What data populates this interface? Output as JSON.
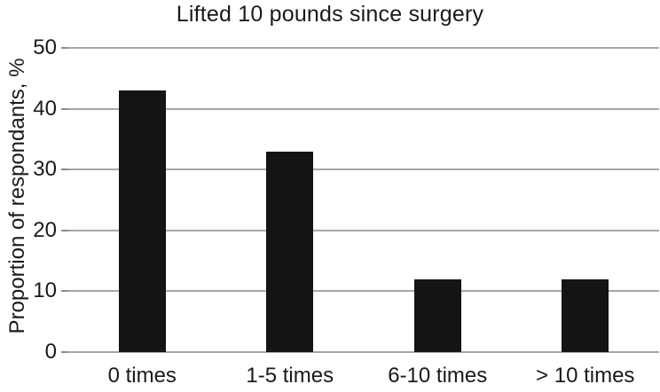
{
  "chart_data": {
    "type": "bar",
    "title": "Lifted 10 pounds since surgery",
    "categories": [
      "0 times",
      "1-5 times",
      "6-10 times",
      "> 10 times"
    ],
    "values": [
      43,
      33,
      12,
      12
    ],
    "xlabel": "",
    "ylabel": "Proportion of respondants, %",
    "ylim": [
      0,
      50
    ],
    "yticks": [
      0,
      10,
      20,
      30,
      40,
      50
    ],
    "grid": true,
    "legend": false,
    "bar_color": "#141414",
    "gridline_color": "#a6a6a6",
    "text_color": "#1a1a1a",
    "background_color": "#ffffff"
  }
}
